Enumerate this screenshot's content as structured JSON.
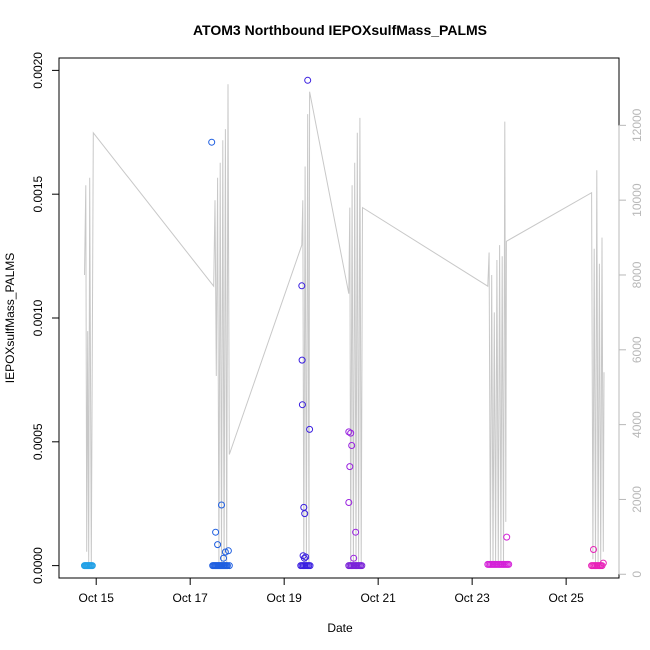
{
  "chart_data": {
    "type": "scatter",
    "title": "ATOM3 Northbound IEPOXsulfMass_PALMS",
    "xlabel": "Date",
    "ylabel": "IEPOXsulfMass_PALMS",
    "xlim": [
      "2017-10-14T05:00",
      "2017-10-26T03:00"
    ],
    "ylim": [
      -5e-05,
      0.00205
    ],
    "y2lim": [
      -100,
      13800
    ],
    "x_ticks": [
      {
        "date": "2017-10-15",
        "label": "Oct 15"
      },
      {
        "date": "2017-10-17",
        "label": "Oct 17"
      },
      {
        "date": "2017-10-19",
        "label": "Oct 19"
      },
      {
        "date": "2017-10-21",
        "label": "Oct 21"
      },
      {
        "date": "2017-10-23",
        "label": "Oct 23"
      },
      {
        "date": "2017-10-25",
        "label": "Oct 25"
      }
    ],
    "y_ticks": [
      {
        "value": 0,
        "label": "0.0000"
      },
      {
        "value": 0.0005,
        "label": "0.0005"
      },
      {
        "value": 0.001,
        "label": "0.0010"
      },
      {
        "value": 0.0015,
        "label": "0.0015"
      },
      {
        "value": 0.002,
        "label": "0.0020"
      }
    ],
    "y2_ticks": [
      {
        "value": 0,
        "label": "0"
      },
      {
        "value": 2000,
        "label": "2000"
      },
      {
        "value": 4000,
        "label": "4000"
      },
      {
        "value": 6000,
        "label": "6000"
      },
      {
        "value": 8000,
        "label": "8000"
      },
      {
        "value": 10000,
        "label": "10000"
      },
      {
        "value": 12000,
        "label": "12000"
      }
    ],
    "line_color": "#c8c8c8",
    "altitude_line": [
      [
        "2017-10-14T18:00",
        8000
      ],
      [
        "2017-10-14T18:40",
        10400
      ],
      [
        "2017-10-14T19:10",
        600
      ],
      [
        "2017-10-14T19:40",
        6500
      ],
      [
        "2017-10-14T20:10",
        300
      ],
      [
        "2017-10-14T20:40",
        10600
      ],
      [
        "2017-10-14T21:30",
        200
      ],
      [
        "2017-10-14T22:30",
        11800
      ],
      [
        "2017-10-17T12:00",
        7700
      ],
      [
        "2017-10-17T12:40",
        10000
      ],
      [
        "2017-10-17T13:20",
        5300
      ],
      [
        "2017-10-17T14:00",
        10600
      ],
      [
        "2017-10-17T14:40",
        200
      ],
      [
        "2017-10-17T15:20",
        11000
      ],
      [
        "2017-10-17T16:00",
        300
      ],
      [
        "2017-10-17T16:40",
        11600
      ],
      [
        "2017-10-17T17:20",
        200
      ],
      [
        "2017-10-17T18:00",
        11900
      ],
      [
        "2017-10-17T18:40",
        300
      ],
      [
        "2017-10-17T19:20",
        13100
      ],
      [
        "2017-10-17T20:00",
        3200
      ],
      [
        "2017-10-19T09:00",
        8800
      ],
      [
        "2017-10-19T09:30",
        10000
      ],
      [
        "2017-10-19T10:00",
        200
      ],
      [
        "2017-10-19T10:40",
        10900
      ],
      [
        "2017-10-19T11:20",
        300
      ],
      [
        "2017-10-19T12:00",
        12300
      ],
      [
        "2017-10-19T12:40",
        200
      ],
      [
        "2017-10-19T13:00",
        12900
      ],
      [
        "2017-10-20T09:00",
        7500
      ],
      [
        "2017-10-20T09:30",
        9800
      ],
      [
        "2017-10-20T10:00",
        300
      ],
      [
        "2017-10-20T10:40",
        10400
      ],
      [
        "2017-10-20T11:20",
        200
      ],
      [
        "2017-10-20T12:00",
        11000
      ],
      [
        "2017-10-20T12:40",
        300
      ],
      [
        "2017-10-20T13:20",
        11800
      ],
      [
        "2017-10-20T14:00",
        200
      ],
      [
        "2017-10-20T14:40",
        12200
      ],
      [
        "2017-10-20T15:20",
        300
      ],
      [
        "2017-10-20T16:00",
        9800
      ],
      [
        "2017-10-23T08:00",
        7700
      ],
      [
        "2017-10-23T08:40",
        8600
      ],
      [
        "2017-10-23T09:20",
        300
      ],
      [
        "2017-10-23T10:00",
        8000
      ],
      [
        "2017-10-23T10:40",
        200
      ],
      [
        "2017-10-23T11:20",
        7000
      ],
      [
        "2017-10-23T12:00",
        300
      ],
      [
        "2017-10-23T12:40",
        8400
      ],
      [
        "2017-10-23T13:20",
        200
      ],
      [
        "2017-10-23T14:00",
        8800
      ],
      [
        "2017-10-23T14:40",
        300
      ],
      [
        "2017-10-23T15:20",
        8500
      ],
      [
        "2017-10-23T16:00",
        200
      ],
      [
        "2017-10-23T16:40",
        12100
      ],
      [
        "2017-10-23T17:10",
        1400
      ],
      [
        "2017-10-23T17:30",
        8900
      ],
      [
        "2017-10-25T13:00",
        10200
      ],
      [
        "2017-10-25T13:40",
        400
      ],
      [
        "2017-10-25T14:20",
        8700
      ],
      [
        "2017-10-25T15:00",
        200
      ],
      [
        "2017-10-25T15:40",
        10800
      ],
      [
        "2017-10-25T16:20",
        300
      ],
      [
        "2017-10-25T17:00",
        8300
      ],
      [
        "2017-10-25T17:40",
        200
      ],
      [
        "2017-10-25T18:20",
        9000
      ],
      [
        "2017-10-25T19:00",
        600
      ],
      [
        "2017-10-25T19:20",
        5400
      ]
    ],
    "points": [
      [
        "2017-10-14T18:00",
        0,
        "#22a0e6"
      ],
      [
        "2017-10-14T18:30",
        0,
        "#22a0e6"
      ],
      [
        "2017-10-14T19:00",
        0,
        "#22a0e6"
      ],
      [
        "2017-10-14T19:30",
        0,
        "#22a0e6"
      ],
      [
        "2017-10-14T20:00",
        0,
        "#22a0e6"
      ],
      [
        "2017-10-14T20:30",
        0,
        "#22a0e6"
      ],
      [
        "2017-10-14T21:00",
        0,
        "#22a0e6"
      ],
      [
        "2017-10-14T21:30",
        0,
        "#22a0e6"
      ],
      [
        "2017-10-14T22:00",
        0,
        "#22a0e6"
      ],
      [
        "2017-10-17T11:30",
        0,
        "#1f5fe0"
      ],
      [
        "2017-10-17T12:00",
        0,
        "#1f5fe0"
      ],
      [
        "2017-10-17T12:30",
        0,
        "#1f5fe0"
      ],
      [
        "2017-10-17T13:00",
        0,
        "#1f5fe0"
      ],
      [
        "2017-10-17T13:30",
        0,
        "#1f5fe0"
      ],
      [
        "2017-10-17T14:00",
        0,
        "#1f5fe0"
      ],
      [
        "2017-10-17T14:30",
        0,
        "#1f5fe0"
      ],
      [
        "2017-10-17T15:00",
        0,
        "#1f5fe0"
      ],
      [
        "2017-10-17T15:30",
        0,
        "#1f5fe0"
      ],
      [
        "2017-10-17T16:00",
        0,
        "#1f5fe0"
      ],
      [
        "2017-10-17T16:30",
        0,
        "#1f5fe0"
      ],
      [
        "2017-10-17T17:00",
        0,
        "#1f5fe0"
      ],
      [
        "2017-10-17T17:30",
        0,
        "#1f5fe0"
      ],
      [
        "2017-10-17T18:00",
        0,
        "#1f5fe0"
      ],
      [
        "2017-10-17T18:30",
        0,
        "#1f5fe0"
      ],
      [
        "2017-10-17T19:00",
        0,
        "#1f5fe0"
      ],
      [
        "2017-10-17T20:00",
        0,
        "#1f5fe0"
      ],
      [
        "2017-10-17T11:00",
        0.00171,
        "#1f5fe0"
      ],
      [
        "2017-10-17T13:00",
        0.000135,
        "#1f5fe0"
      ],
      [
        "2017-10-17T14:00",
        8.5e-05,
        "#1f5fe0"
      ],
      [
        "2017-10-17T16:00",
        0.000245,
        "#1f5fe0"
      ],
      [
        "2017-10-17T17:00",
        3e-05,
        "#1f5fe0"
      ],
      [
        "2017-10-17T18:00",
        5.5e-05,
        "#1f5fe0"
      ],
      [
        "2017-10-17T19:30",
        6e-05,
        "#1f5fe0"
      ],
      [
        "2017-10-19T09:00",
        0.00113,
        "#3a1fe0"
      ],
      [
        "2017-10-19T09:10",
        0.00083,
        "#3a1fe0"
      ],
      [
        "2017-10-19T09:20",
        0.00065,
        "#3a1fe0"
      ],
      [
        "2017-10-19T10:00",
        0.000235,
        "#3a1fe0"
      ],
      [
        "2017-10-19T10:30",
        0.00021,
        "#3a1fe0"
      ],
      [
        "2017-10-19T12:00",
        0.00196,
        "#3a1fe0"
      ],
      [
        "2017-10-19T13:00",
        0.00055,
        "#3a1fe0"
      ],
      [
        "2017-10-19T09:40",
        4e-05,
        "#3a1fe0"
      ],
      [
        "2017-10-19T10:20",
        3e-05,
        "#3a1fe0"
      ],
      [
        "2017-10-19T11:00",
        3.5e-05,
        "#3a1fe0"
      ],
      [
        "2017-10-19T08:30",
        0,
        "#3a1fe0"
      ],
      [
        "2017-10-19T09:10",
        0,
        "#3a1fe0"
      ],
      [
        "2017-10-19T09:50",
        0,
        "#3a1fe0"
      ],
      [
        "2017-10-19T10:30",
        0,
        "#3a1fe0"
      ],
      [
        "2017-10-19T11:10",
        0,
        "#3a1fe0"
      ],
      [
        "2017-10-19T11:50",
        0,
        "#3a1fe0"
      ],
      [
        "2017-10-19T12:30",
        0,
        "#3a1fe0"
      ],
      [
        "2017-10-19T13:10",
        0,
        "#3a1fe0"
      ],
      [
        "2017-10-20T09:00",
        0.00054,
        "#9a22e0"
      ],
      [
        "2017-10-20T10:00",
        0.000535,
        "#9a22e0"
      ],
      [
        "2017-10-20T10:30",
        0.000485,
        "#9a22e0"
      ],
      [
        "2017-10-20T09:30",
        0.0004,
        "#9a22e0"
      ],
      [
        "2017-10-20T09:00",
        0.000255,
        "#9a22e0"
      ],
      [
        "2017-10-20T12:30",
        0.000135,
        "#9a22e0"
      ],
      [
        "2017-10-20T11:30",
        3e-05,
        "#9a22e0"
      ],
      [
        "2017-10-20T09:00",
        0,
        "#7a22d8"
      ],
      [
        "2017-10-20T09:40",
        0,
        "#7a22d8"
      ],
      [
        "2017-10-20T10:20",
        0,
        "#7a22d8"
      ],
      [
        "2017-10-20T11:00",
        0,
        "#7a22d8"
      ],
      [
        "2017-10-20T11:40",
        0,
        "#7a22d8"
      ],
      [
        "2017-10-20T12:20",
        0,
        "#7a22d8"
      ],
      [
        "2017-10-20T13:00",
        0,
        "#7a22d8"
      ],
      [
        "2017-10-20T13:40",
        0,
        "#7a22d8"
      ],
      [
        "2017-10-20T14:20",
        0,
        "#7a22d8"
      ],
      [
        "2017-10-20T15:00",
        0,
        "#7a22d8"
      ],
      [
        "2017-10-20T15:40",
        0,
        "#7a22d8"
      ],
      [
        "2017-10-23T08:00",
        5e-06,
        "#d422d8"
      ],
      [
        "2017-10-23T08:40",
        5e-06,
        "#d422d8"
      ],
      [
        "2017-10-23T09:20",
        5e-06,
        "#d422d8"
      ],
      [
        "2017-10-23T10:00",
        5e-06,
        "#d422d8"
      ],
      [
        "2017-10-23T10:40",
        5e-06,
        "#d422d8"
      ],
      [
        "2017-10-23T11:20",
        5e-06,
        "#d422d8"
      ],
      [
        "2017-10-23T12:00",
        5e-06,
        "#d422d8"
      ],
      [
        "2017-10-23T12:40",
        5e-06,
        "#d422d8"
      ],
      [
        "2017-10-23T13:20",
        5e-06,
        "#d422d8"
      ],
      [
        "2017-10-23T14:00",
        5e-06,
        "#d422d8"
      ],
      [
        "2017-10-23T14:40",
        5e-06,
        "#d422d8"
      ],
      [
        "2017-10-23T15:20",
        5e-06,
        "#d422d8"
      ],
      [
        "2017-10-23T16:00",
        5e-06,
        "#d422d8"
      ],
      [
        "2017-10-23T16:40",
        5e-06,
        "#d422d8"
      ],
      [
        "2017-10-23T17:20",
        5e-06,
        "#d422d8"
      ],
      [
        "2017-10-23T18:00",
        5e-06,
        "#d422d8"
      ],
      [
        "2017-10-23T18:40",
        5e-06,
        "#d422d8"
      ],
      [
        "2017-10-23T17:40",
        0.000115,
        "#d422d8"
      ],
      [
        "2017-10-25T14:00",
        6.5e-05,
        "#e822b8"
      ],
      [
        "2017-10-25T13:00",
        0,
        "#e822b8"
      ],
      [
        "2017-10-25T13:40",
        0,
        "#e822b8"
      ],
      [
        "2017-10-25T14:20",
        0,
        "#e822b8"
      ],
      [
        "2017-10-25T15:00",
        0,
        "#e822b8"
      ],
      [
        "2017-10-25T15:40",
        0,
        "#e822b8"
      ],
      [
        "2017-10-25T16:20",
        0,
        "#e822b8"
      ],
      [
        "2017-10-25T17:00",
        0,
        "#e822b8"
      ],
      [
        "2017-10-25T17:40",
        0,
        "#e822b8"
      ],
      [
        "2017-10-25T18:20",
        0,
        "#e822b8"
      ],
      [
        "2017-10-25T19:00",
        1e-05,
        "#e822b8"
      ]
    ],
    "grid": false
  }
}
